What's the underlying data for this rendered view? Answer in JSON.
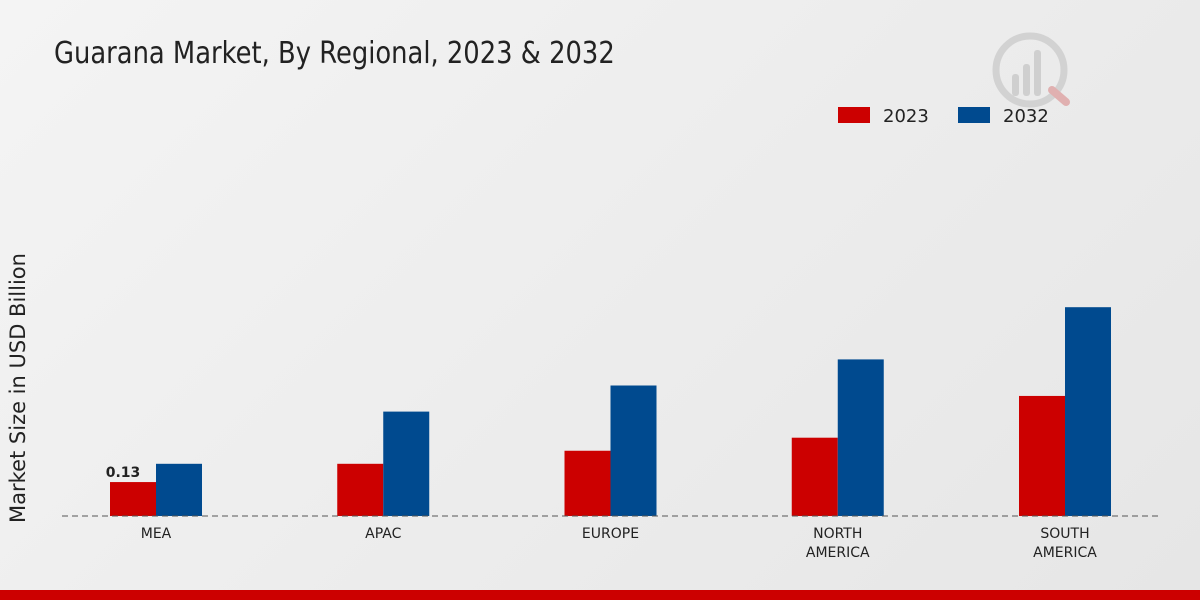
{
  "chart_data": {
    "type": "bar",
    "title": "Guarana Market, By Regional, 2023 & 2032",
    "xlabel": "",
    "ylabel": "Market Size in USD Billion",
    "categories": [
      "MEA",
      "APAC",
      "EUROPE",
      "NORTH AMERICA",
      "SOUTH AMERICA"
    ],
    "category_lines": [
      [
        "MEA"
      ],
      [
        "APAC"
      ],
      [
        "EUROPE"
      ],
      [
        "NORTH",
        "AMERICA"
      ],
      [
        "SOUTH",
        "AMERICA"
      ]
    ],
    "series": [
      {
        "name": "2023",
        "color": "#cc0000",
        "values": [
          0.13,
          0.2,
          0.25,
          0.3,
          0.46
        ]
      },
      {
        "name": "2032",
        "color": "#004a8f",
        "values": [
          0.2,
          0.4,
          0.5,
          0.6,
          0.8
        ]
      }
    ],
    "ylim": [
      0,
      1.0
    ],
    "grid": false,
    "legend_position": "top-right",
    "annotations": [
      {
        "series": 0,
        "category": 0,
        "text": "0.13"
      }
    ]
  }
}
